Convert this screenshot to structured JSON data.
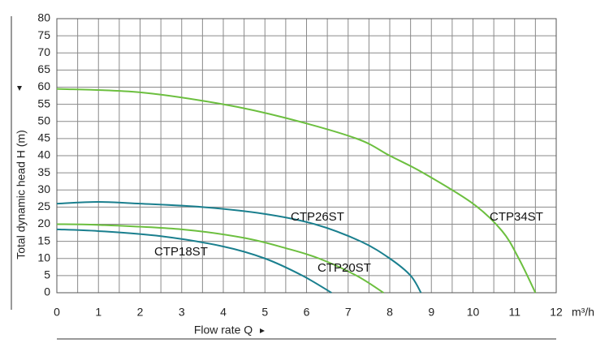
{
  "chart_data": {
    "type": "line",
    "y_label": "Total dynamic head H (m)",
    "x_label": "Flow rate Q",
    "x_unit": "m³/h",
    "xlim": [
      0,
      12
    ],
    "xticks": [
      0,
      1,
      2,
      3,
      4,
      5,
      6,
      7,
      8,
      9,
      10,
      11,
      12
    ],
    "ylim": [
      0,
      80
    ],
    "yticks": [
      0,
      5,
      10,
      15,
      20,
      25,
      30,
      35,
      40,
      45,
      50,
      55,
      60,
      65,
      70,
      75,
      80
    ],
    "grid": true,
    "series": [
      {
        "name": "CTP34ST",
        "color": "#6cbf3f",
        "x": [
          0,
          2,
          4,
          5.5,
          7.2,
          8,
          8.8,
          10,
          10.7,
          11.1,
          11.5
        ],
        "values": [
          59.5,
          58.5,
          55,
          51,
          45,
          40,
          35,
          26,
          18,
          10,
          0
        ]
      },
      {
        "name": "CTP26ST",
        "color": "#1a7f8e",
        "x": [
          0,
          1,
          2,
          3.5,
          5,
          6.2,
          7.3,
          8,
          8.5,
          8.75
        ],
        "values": [
          26,
          26.5,
          26,
          25,
          23,
          20,
          15,
          10,
          5,
          0
        ]
      },
      {
        "name": "CTP20ST",
        "color": "#6cbf3f",
        "x": [
          0,
          1,
          3,
          4.5,
          5.5,
          6.3,
          7.2,
          7.85
        ],
        "values": [
          20,
          19.8,
          18.5,
          16,
          13,
          10,
          5,
          0
        ]
      },
      {
        "name": "CTP18ST",
        "color": "#1a7f8e",
        "x": [
          0,
          1,
          2.5,
          4,
          5,
          5.9,
          6.6
        ],
        "values": [
          18.5,
          18,
          16.5,
          13.5,
          10,
          5,
          0
        ]
      }
    ]
  }
}
